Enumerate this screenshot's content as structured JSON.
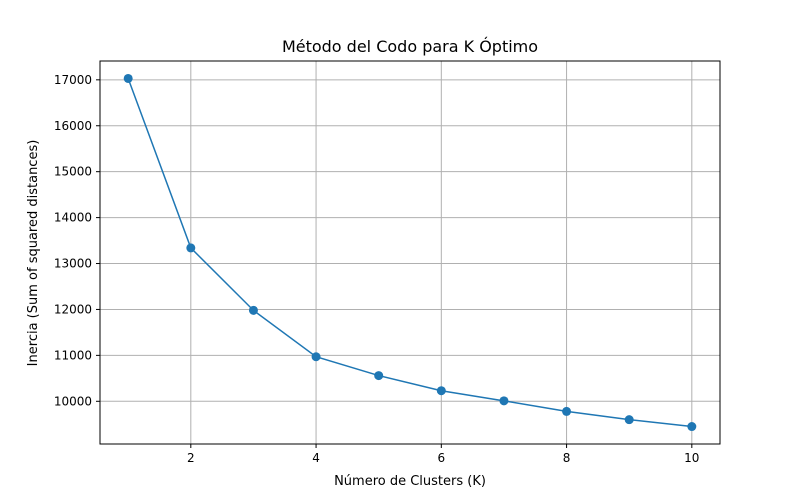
{
  "chart_data": {
    "type": "line",
    "title": "Método del Codo para K Óptimo",
    "xlabel": "Número de Clusters (K)",
    "ylabel": "Inercia (Sum of squared distances)",
    "x": [
      1,
      2,
      3,
      4,
      5,
      6,
      7,
      8,
      9,
      10
    ],
    "series": [
      {
        "values": [
          17030,
          13340,
          11980,
          10970,
          10560,
          10230,
          10010,
          9780,
          9600,
          9450
        ],
        "color": "#1f77b4",
        "marker": "circle"
      }
    ],
    "xlim": [
      0.55,
      10.45
    ],
    "ylim": [
      9070,
      17410
    ],
    "xticks": [
      2,
      4,
      6,
      8,
      10
    ],
    "yticks": [
      10000,
      11000,
      12000,
      13000,
      14000,
      15000,
      16000,
      17000
    ],
    "xtick_labels": [
      "2",
      "4",
      "6",
      "8",
      "10"
    ],
    "ytick_labels": [
      "10000",
      "11000",
      "12000",
      "13000",
      "14000",
      "15000",
      "16000",
      "17000"
    ],
    "grid": true,
    "legend": false
  }
}
